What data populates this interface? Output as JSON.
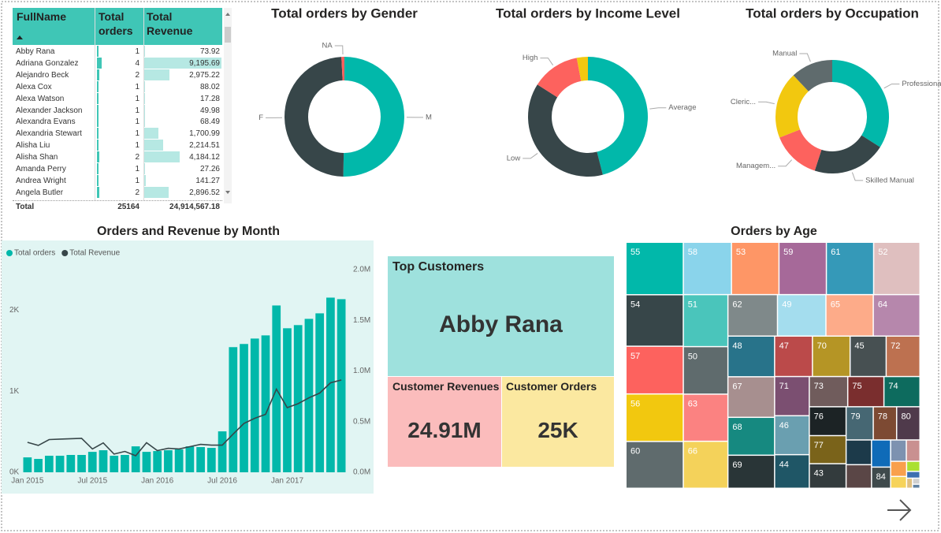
{
  "table": {
    "columns": [
      "FullName",
      "Total orders",
      "Total Revenue"
    ],
    "rows": [
      {
        "name": "Abby Rana",
        "orders": 1,
        "revenue": 73.92
      },
      {
        "name": "Adriana Gonzalez",
        "orders": 4,
        "revenue": 9195.69
      },
      {
        "name": "Alejandro Beck",
        "orders": 2,
        "revenue": 2975.22
      },
      {
        "name": "Alexa Cox",
        "orders": 1,
        "revenue": 88.02
      },
      {
        "name": "Alexa Watson",
        "orders": 1,
        "revenue": 17.28
      },
      {
        "name": "Alexander Jackson",
        "orders": 1,
        "revenue": 49.98
      },
      {
        "name": "Alexandra Evans",
        "orders": 1,
        "revenue": 68.49
      },
      {
        "name": "Alexandria Stewart",
        "orders": 1,
        "revenue": 1700.99
      },
      {
        "name": "Alisha Liu",
        "orders": 1,
        "revenue": 2214.51
      },
      {
        "name": "Alisha Shan",
        "orders": 2,
        "revenue": 4184.12
      },
      {
        "name": "Amanda Perry",
        "orders": 1,
        "revenue": 27.26
      },
      {
        "name": "Andrea Wright",
        "orders": 1,
        "revenue": 141.27
      },
      {
        "name": "Angela Butler",
        "orders": 2,
        "revenue": 2896.52
      }
    ],
    "revenue_labels": [
      "73.92",
      "9,195.69",
      "2,975.22",
      "88.02",
      "17.28",
      "49.98",
      "68.49",
      "1,700.99",
      "2,214.51",
      "4,184.12",
      "27.26",
      "141.27",
      "2,896.52"
    ],
    "total": {
      "label": "Total",
      "orders": 25164,
      "revenue": "24,914,567.18"
    }
  },
  "cards": {
    "title": "Top Customers",
    "customer": "Abby Rana",
    "revenue_title": "Customer Revenues",
    "revenue": "24.91M",
    "orders_title": "Customer Orders",
    "orders": "25K"
  },
  "chart_data": [
    {
      "type": "donut",
      "title": "Total orders by Gender",
      "categories": [
        "M",
        "F",
        "NA"
      ],
      "values": [
        50.3,
        48.9,
        0.8
      ],
      "colors": [
        "#01b8aa",
        "#374649",
        "#fd625e"
      ]
    },
    {
      "type": "donut",
      "title": "Total orders by Income Level",
      "categories": [
        "Average",
        "Low",
        "High",
        null
      ],
      "values": [
        46,
        38,
        13,
        3
      ],
      "colors": [
        "#01b8aa",
        "#374649",
        "#fd625e",
        "#f2c80f"
      ]
    },
    {
      "type": "donut",
      "title": "Total orders by Occupation",
      "categories": [
        "Professional",
        "Skilled Manual",
        "Managem...",
        "Cleric...",
        "Manual"
      ],
      "values": [
        34,
        21,
        14,
        19,
        12
      ],
      "colors": [
        "#01b8aa",
        "#374649",
        "#fd625e",
        "#f2c80f",
        "#5f6b6d"
      ]
    },
    {
      "type": "combo",
      "title": "Orders and Revenue by Month",
      "categories": [
        "Jan 2015",
        null,
        null,
        null,
        null,
        null,
        "Jul 2015",
        null,
        null,
        null,
        null,
        null,
        "Jan 2016",
        null,
        null,
        null,
        null,
        null,
        "Jul 2016",
        null,
        null,
        null,
        null,
        null,
        "Jan 2017",
        null,
        null,
        null,
        null,
        null
      ],
      "series": [
        {
          "name": "Total orders",
          "kind": "bar",
          "color": "#01b8aa",
          "values": [
            184,
            165,
            204,
            204,
            214,
            214,
            252,
            272,
            204,
            214,
            320,
            252,
            262,
            272,
            282,
            320,
            311,
            301,
            505,
            1544,
            1583,
            1650,
            1689,
            2058,
            1777,
            1816,
            1893,
            1961,
            2155,
            2136
          ]
        },
        {
          "name": "Total Revenue",
          "kind": "line",
          "axis": "y2",
          "color": "#374649",
          "values": [
            296000,
            265000,
            323000,
            327000,
            331000,
            335000,
            230000,
            290000,
            180000,
            206000,
            163000,
            292000,
            214000,
            237000,
            230000,
            253000,
            276000,
            268000,
            268000,
            377000,
            482000,
            533000,
            572000,
            821000,
            638000,
            677000,
            735000,
            782000,
            883000,
            911000
          ]
        }
      ],
      "ylim": [
        0,
        2500
      ],
      "yticks": [
        {
          "value": 0,
          "label": "0K"
        },
        {
          "value": 1000,
          "label": "1K"
        },
        {
          "value": 2000,
          "label": "2K"
        }
      ],
      "y2lim": [
        0,
        2000000
      ],
      "y2ticks": [
        {
          "value": 0,
          "label": "0.0M"
        },
        {
          "value": 500000,
          "label": "0.5M"
        },
        {
          "value": 1000000,
          "label": "1.0M"
        },
        {
          "value": 1500000,
          "label": "1.5M"
        },
        {
          "value": 2000000,
          "label": "2.0M"
        }
      ],
      "legend": "top-left",
      "grid": false
    },
    {
      "type": "treemap",
      "title": "Orders by Age",
      "categories": [
        "55",
        "54",
        "57",
        "56",
        "60",
        "58",
        "53",
        "59",
        "61",
        "52",
        "51",
        "50",
        "63",
        "66",
        "62",
        "49",
        "65",
        "64",
        "48",
        "67",
        "68",
        "69",
        "47",
        "70",
        "45",
        "72",
        "71",
        "46",
        "44",
        "73",
        "75",
        "74",
        "76",
        "77",
        "43",
        "79",
        "78",
        "80",
        null,
        null,
        null,
        "84",
        null,
        null,
        null,
        null,
        null,
        null,
        null,
        null,
        null
      ],
      "values": [
        1005,
        986,
        914,
        910,
        896,
        842,
        830,
        828,
        826,
        809,
        775,
        708,
        702,
        700,
        686,
        671,
        656,
        646,
        634,
        632,
        590,
        515,
        511,
        509,
        487,
        456,
        454,
        451,
        389,
        388,
        365,
        363,
        355,
        345,
        302,
        301,
        259,
        258,
        210,
        200,
        173,
        135,
        112,
        97,
        81,
        63,
        45,
        30,
        20,
        15,
        10
      ],
      "colors": [
        "#01b8aa",
        "#374649",
        "#fd625e",
        "#f2c80f",
        "#5f6b6d",
        "#8ad4eb",
        "#fe9666",
        "#a66999",
        "#3599b8",
        "#dfbfbf",
        "#4ac5bb",
        "#5f6b6d",
        "#fb8281",
        "#f4d25a",
        "#7f898a",
        "#a4ddee",
        "#fdab89",
        "#b687ac",
        "#28738a",
        "#a78f8f",
        "#168980",
        "#293537",
        "#bb4a4a",
        "#b59525",
        "#475052",
        "#bd7150",
        "#7b4f71",
        "#6a9fb0",
        "#1f5666",
        "#705c5c",
        "#7a2e2e",
        "#0d6b5e",
        "#1c2325",
        "#7a631a",
        "#333b3d",
        "#466773",
        "#7d4a33",
        "#4f3a4b",
        "#1c3a4a",
        "#5a4646",
        "#0f6bb8",
        "#3f4a4c",
        "#7d92b0",
        "#c99090",
        "#f9a04c",
        "#f6d35a",
        "#aae032",
        "#3d6fb0",
        "#e0c080",
        "#d0d0d0",
        "#6080a0"
      ]
    }
  ]
}
